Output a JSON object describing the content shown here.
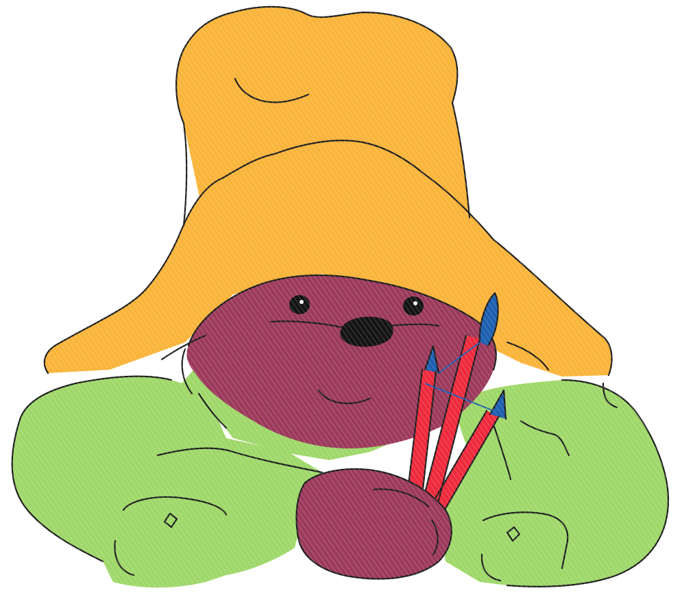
{
  "colors": {
    "hat": "#f9b43a",
    "coat": "#9fd86a",
    "fur": "#9c3a5c",
    "nose": "#141414",
    "brush_handle": "#ee2a3c",
    "brush_tip": "#1d5fb0",
    "outline": "#1e1e1e",
    "background": "#ffffff"
  },
  "icons": {
    "hat": "bucket-hat-icon",
    "bear": "bear-face-icon",
    "coat": "duffle-coat-icon",
    "paw": "paw-icon",
    "brushes": "paint-brushes-icon"
  }
}
